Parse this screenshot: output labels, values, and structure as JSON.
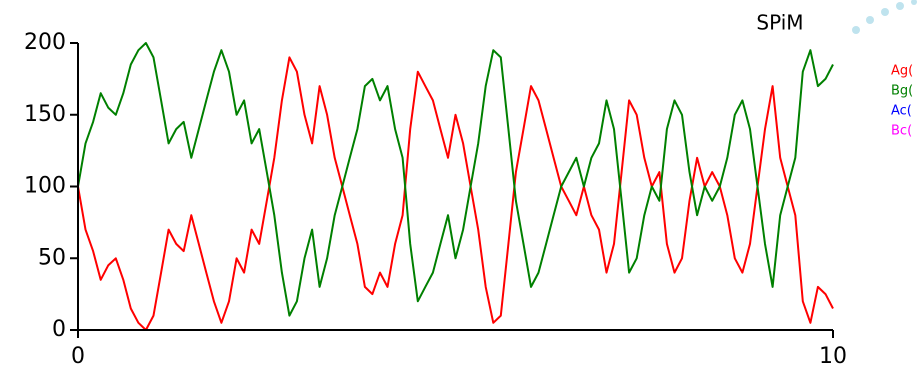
{
  "chart_data": {
    "type": "line",
    "title": "SPiM",
    "x": [
      0,
      0.1,
      0.2,
      0.3,
      0.4,
      0.5,
      0.6,
      0.7,
      0.8,
      0.9,
      1,
      1.1,
      1.2,
      1.3,
      1.4,
      1.5,
      1.6,
      1.7,
      1.8,
      1.9,
      2,
      2.1,
      2.2,
      2.3,
      2.4,
      2.5,
      2.6,
      2.7,
      2.8,
      2.9,
      3,
      3.1,
      3.2,
      3.3,
      3.4,
      3.5,
      3.6,
      3.7,
      3.8,
      3.9,
      4,
      4.1,
      4.2,
      4.3,
      4.4,
      4.5,
      4.6,
      4.7,
      4.8,
      4.9,
      5,
      5.1,
      5.2,
      5.3,
      5.4,
      5.5,
      5.6,
      5.7,
      5.8,
      5.9,
      6,
      6.1,
      6.2,
      6.3,
      6.4,
      6.5,
      6.6,
      6.7,
      6.8,
      6.9,
      7,
      7.1,
      7.2,
      7.3,
      7.4,
      7.5,
      7.6,
      7.7,
      7.8,
      7.9,
      8,
      8.1,
      8.2,
      8.3,
      8.4,
      8.5,
      8.6,
      8.7,
      8.8,
      8.9,
      9,
      9.1,
      9.2,
      9.3,
      9.4,
      9.5,
      9.6,
      9.7,
      9.8,
      9.9,
      10
    ],
    "series": [
      {
        "name": "Ag(",
        "color": "#ff0000",
        "values": [
          100,
          70,
          55,
          35,
          45,
          50,
          35,
          15,
          5,
          0,
          10,
          40,
          70,
          60,
          55,
          80,
          60,
          40,
          20,
          5,
          20,
          50,
          40,
          70,
          60,
          90,
          120,
          160,
          190,
          180,
          150,
          130,
          170,
          150,
          120,
          100,
          80,
          60,
          30,
          25,
          40,
          30,
          60,
          80,
          140,
          180,
          170,
          160,
          140,
          120,
          150,
          130,
          100,
          70,
          30,
          5,
          10,
          60,
          110,
          140,
          170,
          160,
          140,
          120,
          100,
          90,
          80,
          100,
          80,
          70,
          40,
          60,
          110,
          160,
          150,
          120,
          100,
          110,
          60,
          40,
          50,
          90,
          120,
          100,
          110,
          100,
          80,
          50,
          40,
          60,
          100,
          140,
          170,
          120,
          100,
          80,
          20,
          5,
          30,
          25,
          15
        ]
      },
      {
        "name": "Bg(",
        "color": "#008000",
        "values": [
          100,
          130,
          145,
          165,
          155,
          150,
          165,
          185,
          195,
          200,
          190,
          160,
          130,
          140,
          145,
          120,
          140,
          160,
          180,
          195,
          180,
          150,
          160,
          130,
          140,
          110,
          80,
          40,
          10,
          20,
          50,
          70,
          30,
          50,
          80,
          100,
          120,
          140,
          170,
          175,
          160,
          170,
          140,
          120,
          60,
          20,
          30,
          40,
          60,
          80,
          50,
          70,
          100,
          130,
          170,
          195,
          190,
          140,
          90,
          60,
          30,
          40,
          60,
          80,
          100,
          110,
          120,
          100,
          120,
          130,
          160,
          140,
          90,
          40,
          50,
          80,
          100,
          90,
          140,
          160,
          150,
          110,
          80,
          100,
          90,
          100,
          120,
          150,
          160,
          140,
          100,
          60,
          30,
          80,
          100,
          120,
          180,
          195,
          170,
          175,
          185
        ]
      },
      {
        "name": "Ac(",
        "color": "#0000ff",
        "values": [
          null,
          null,
          null,
          null,
          null,
          null,
          null,
          null,
          null,
          null,
          null,
          null,
          null,
          null,
          null,
          null,
          null,
          null,
          null,
          null,
          null,
          null,
          null,
          null,
          null,
          null,
          null,
          null,
          null,
          null,
          null,
          null,
          null,
          null,
          null,
          null,
          null,
          null,
          null,
          null,
          null,
          null,
          null,
          null,
          null,
          null,
          null,
          null,
          null,
          null,
          null,
          null,
          null,
          null,
          null,
          null,
          null,
          null,
          null,
          null,
          null,
          null,
          null,
          null,
          null,
          null,
          null,
          null,
          null,
          null,
          null,
          null,
          null,
          null,
          null,
          null,
          null,
          null,
          null,
          null,
          null,
          null,
          null,
          null,
          null,
          null,
          null,
          null,
          null,
          null,
          null,
          null,
          null,
          null,
          null,
          null,
          null,
          null,
          null,
          null,
          null
        ]
      },
      {
        "name": "Bc(",
        "color": "#ff00ff",
        "values": [
          null,
          null,
          null,
          null,
          null,
          null,
          null,
          null,
          null,
          null,
          null,
          null,
          null,
          null,
          null,
          null,
          null,
          null,
          null,
          null,
          null,
          null,
          null,
          null,
          null,
          null,
          null,
          null,
          null,
          null,
          null,
          null,
          null,
          null,
          null,
          null,
          null,
          null,
          null,
          null,
          null,
          null,
          null,
          null,
          null,
          null,
          null,
          null,
          null,
          null,
          null,
          null,
          null,
          null,
          null,
          null,
          null,
          null,
          null,
          null,
          null,
          null,
          null,
          null,
          null,
          null,
          null,
          null,
          null,
          null,
          null,
          null,
          null,
          null,
          null,
          null,
          null,
          null,
          null,
          null,
          null,
          null,
          null,
          null,
          null,
          null,
          null,
          null,
          null,
          null,
          null,
          null,
          null,
          null,
          null,
          null,
          null,
          null,
          null,
          null,
          null
        ]
      }
    ],
    "xlim": [
      0,
      10
    ],
    "xticks": [
      0,
      10
    ],
    "ylim": [
      0,
      200
    ],
    "yticks": [
      0,
      50,
      100,
      150,
      200
    ],
    "legend": "right"
  }
}
